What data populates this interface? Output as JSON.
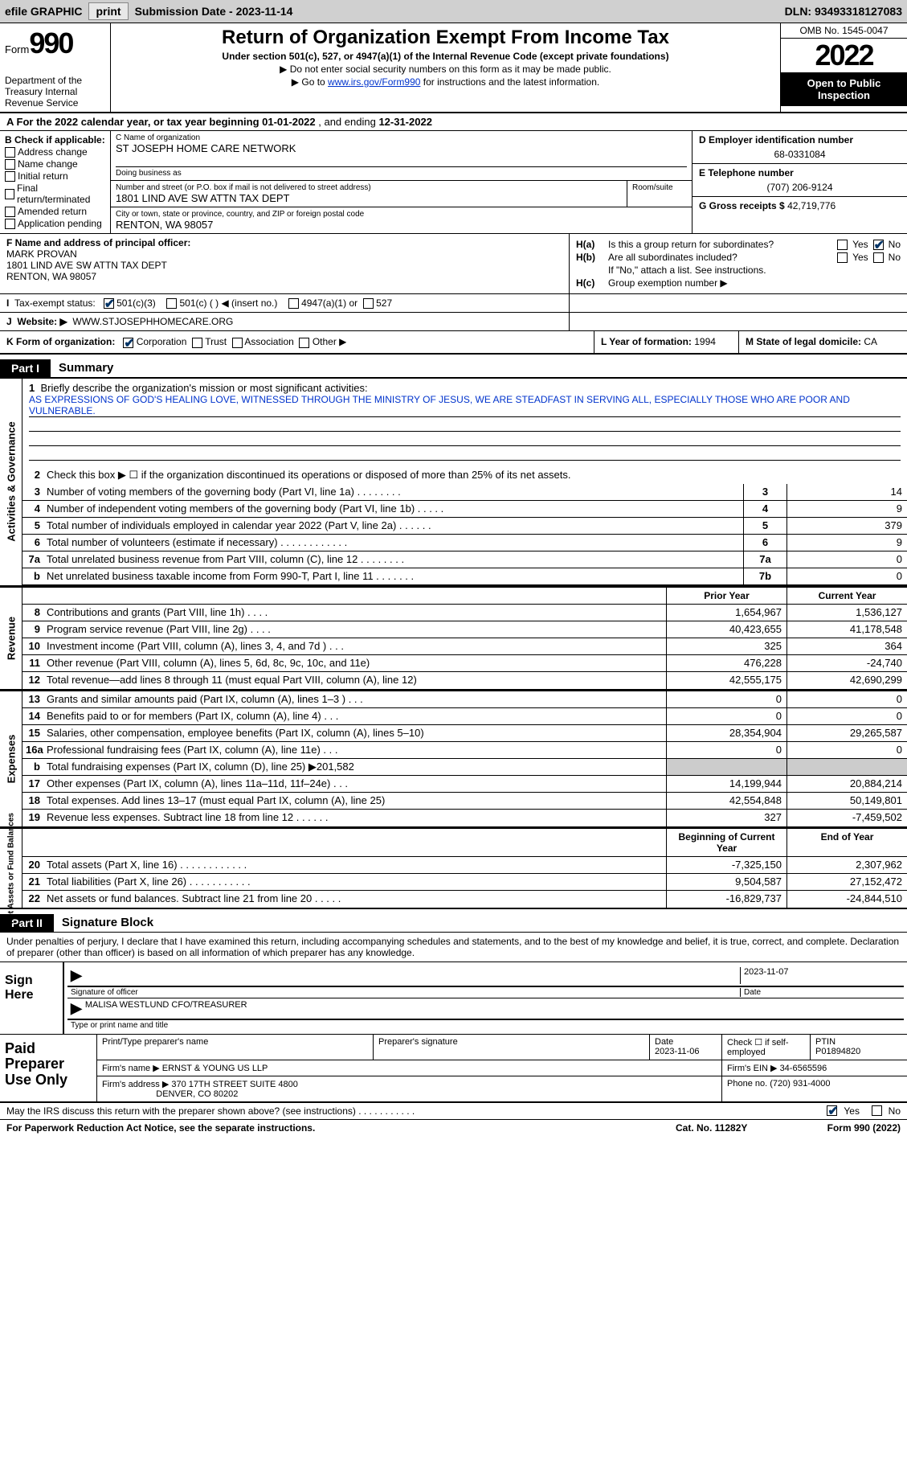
{
  "topbar": {
    "efile": "efile GRAPHIC",
    "print": "print",
    "sub_date_label": "Submission Date - ",
    "sub_date": "2023-11-14",
    "dln_label": "DLN: ",
    "dln": "93493318127083"
  },
  "header": {
    "form_word": "Form",
    "form_num": "990",
    "dept": "Department of the Treasury Internal Revenue Service",
    "title": "Return of Organization Exempt From Income Tax",
    "sub1": "Under section 501(c), 527, or 4947(a)(1) of the Internal Revenue Code (except private foundations)",
    "sub2": "▶ Do not enter social security numbers on this form as it may be made public.",
    "sub3_pre": "▶ Go to ",
    "sub3_link": "www.irs.gov/Form990",
    "sub3_post": " for instructions and the latest information.",
    "omb": "OMB No. 1545-0047",
    "year": "2022",
    "open": "Open to Public Inspection"
  },
  "row_a": {
    "text_pre": "A For the 2022 calendar year, or tax year beginning ",
    "begin": "01-01-2022",
    "mid": "  , and ending ",
    "end": "12-31-2022"
  },
  "col_b": {
    "title": "B Check if applicable:",
    "items": [
      "Address change",
      "Name change",
      "Initial return",
      "Final return/terminated",
      "Amended return",
      "Application pending"
    ]
  },
  "col_c": {
    "name_label": "C Name of organization",
    "name": "ST JOSEPH HOME CARE NETWORK",
    "dba_label": "Doing business as",
    "dba": "",
    "addr_label": "Number and street (or P.O. box if mail is not delivered to street address)",
    "addr": "1801 LIND AVE SW ATTN TAX DEPT",
    "room_label": "Room/suite",
    "city_label": "City or town, state or province, country, and ZIP or foreign postal code",
    "city": "RENTON, WA  98057"
  },
  "col_de": {
    "d_label": "D Employer identification number",
    "d_val": "68-0331084",
    "e_label": "E Telephone number",
    "e_val": "(707) 206-9124",
    "g_label": "G Gross receipts $ ",
    "g_val": "42,719,776"
  },
  "col_f": {
    "label": "F Name and address of principal officer:",
    "name": "MARK PROVAN",
    "addr1": "1801 LIND AVE SW ATTN TAX DEPT",
    "addr2": "RENTON, WA  98057"
  },
  "col_h": {
    "ha_label": "H(a)",
    "ha_text": "Is this a group return for subordinates?",
    "ha_no": true,
    "hb_label": "H(b)",
    "hb_text": "Are all subordinates included?",
    "hb_note": "If \"No,\" attach a list. See instructions.",
    "hc_label": "H(c)",
    "hc_text": "Group exemption number ▶"
  },
  "row_i": {
    "label": "I",
    "text": "Tax-exempt status:",
    "opt1": "501(c)(3)",
    "opt2": "501(c) (  ) ◀ (insert no.)",
    "opt3": "4947(a)(1) or",
    "opt4": "527"
  },
  "row_j": {
    "label": "J",
    "text": "Website: ▶",
    "val": "WWW.STJOSEPHHOMECARE.ORG"
  },
  "row_k": {
    "label": "K Form of organization:",
    "opts": [
      "Corporation",
      "Trust",
      "Association",
      "Other ▶"
    ],
    "l_label": "L Year of formation: ",
    "l_val": "1994",
    "m_label": "M State of legal domicile: ",
    "m_val": "CA"
  },
  "part1": {
    "tab": "Part I",
    "title": "Summary",
    "line1_label": "1",
    "line1_text": "Briefly describe the organization's mission or most significant activities:",
    "mission": "AS EXPRESSIONS OF GOD'S HEALING LOVE, WITNESSED THROUGH THE MINISTRY OF JESUS, WE ARE STEADFAST IN SERVING ALL, ESPECIALLY THOSE WHO ARE POOR AND VULNERABLE.",
    "sec_ag": "Activities & Governance",
    "line2_text": "Check this box ▶ ☐ if the organization discontinued its operations or disposed of more than 25% of its net assets.",
    "lines_ag": [
      {
        "n": "3",
        "t": "Number of voting members of the governing body (Part VI, line 1a)  .    .    .    .    .    .    .    .",
        "b": "3",
        "v": "14"
      },
      {
        "n": "4",
        "t": "Number of independent voting members of the governing body (Part VI, line 1b)  .    .    .    .    .",
        "b": "4",
        "v": "9"
      },
      {
        "n": "5",
        "t": "Total number of individuals employed in calendar year 2022 (Part V, line 2a)  .    .    .    .    .    .",
        "b": "5",
        "v": "379"
      },
      {
        "n": "6",
        "t": "Total number of volunteers (estimate if necessary)    .    .    .    .    .    .    .    .    .    .    .    .",
        "b": "6",
        "v": "9"
      },
      {
        "n": "7a",
        "t": "Total unrelated business revenue from Part VIII, column (C), line 12  .    .    .    .    .    .    .    .",
        "b": "7a",
        "v": "0"
      },
      {
        "n": "b",
        "t": "Net unrelated business taxable income from Form 990-T, Part I, line 11  .    .    .    .    .    .    .",
        "b": "7b",
        "v": "0"
      }
    ],
    "prior_h": "Prior Year",
    "curr_h": "Current Year",
    "sec_rev": "Revenue",
    "lines_rev": [
      {
        "n": "8",
        "t": "Contributions and grants (Part VIII, line 1h)    .    .    .    .",
        "p": "1,654,967",
        "c": "1,536,127"
      },
      {
        "n": "9",
        "t": "Program service revenue (Part VIII, line 2g)    .    .    .    .",
        "p": "40,423,655",
        "c": "41,178,548"
      },
      {
        "n": "10",
        "t": "Investment income (Part VIII, column (A), lines 3, 4, and 7d )    .    .    .",
        "p": "325",
        "c": "364"
      },
      {
        "n": "11",
        "t": "Other revenue (Part VIII, column (A), lines 5, 6d, 8c, 9c, 10c, and 11e)",
        "p": "476,228",
        "c": "-24,740"
      },
      {
        "n": "12",
        "t": "Total revenue—add lines 8 through 11 (must equal Part VIII, column (A), line 12)",
        "p": "42,555,175",
        "c": "42,690,299"
      }
    ],
    "sec_exp": "Expenses",
    "lines_exp": [
      {
        "n": "13",
        "t": "Grants and similar amounts paid (Part IX, column (A), lines 1–3 )  .    .    .",
        "p": "0",
        "c": "0"
      },
      {
        "n": "14",
        "t": "Benefits paid to or for members (Part IX, column (A), line 4)  .    .    .",
        "p": "0",
        "c": "0"
      },
      {
        "n": "15",
        "t": "Salaries, other compensation, employee benefits (Part IX, column (A), lines 5–10)",
        "p": "28,354,904",
        "c": "29,265,587"
      },
      {
        "n": "16a",
        "t": "Professional fundraising fees (Part IX, column (A), line 11e)    .    .    .",
        "p": "0",
        "c": "0"
      },
      {
        "n": "b",
        "t": "Total fundraising expenses (Part IX, column (D), line 25) ▶201,582",
        "p": "",
        "c": "",
        "grey": true
      },
      {
        "n": "17",
        "t": "Other expenses (Part IX, column (A), lines 11a–11d, 11f–24e)  .    .    .",
        "p": "14,199,944",
        "c": "20,884,214"
      },
      {
        "n": "18",
        "t": "Total expenses. Add lines 13–17 (must equal Part IX, column (A), line 25)",
        "p": "42,554,848",
        "c": "50,149,801"
      },
      {
        "n": "19",
        "t": "Revenue less expenses. Subtract line 18 from line 12   .    .    .    .    .    .",
        "p": "327",
        "c": "-7,459,502"
      }
    ],
    "sec_net": "Net Assets or Fund Balances",
    "net_h1": "Beginning of Current Year",
    "net_h2": "End of Year",
    "lines_net": [
      {
        "n": "20",
        "t": "Total assets (Part X, line 16)  .    .    .    .    .    .    .    .    .    .    .    .",
        "p": "-7,325,150",
        "c": "2,307,962"
      },
      {
        "n": "21",
        "t": "Total liabilities (Part X, line 26)  .    .    .    .    .    .    .    .    .    .    .",
        "p": "9,504,587",
        "c": "27,152,472"
      },
      {
        "n": "22",
        "t": "Net assets or fund balances. Subtract line 21 from line 20  .    .    .    .    .",
        "p": "-16,829,737",
        "c": "-24,844,510"
      }
    ]
  },
  "part2": {
    "tab": "Part II",
    "title": "Signature Block",
    "decl": "Under penalties of perjury, I declare that I have examined this return, including accompanying schedules and statements, and to the best of my knowledge and belief, it is true, correct, and complete. Declaration of preparer (other than officer) is based on all information of which preparer has any knowledge.",
    "sign_here": "Sign Here",
    "sig_officer_label": "Signature of officer",
    "sig_date": "2023-11-07",
    "sig_date_label": "Date",
    "sig_name": "MALISA WESTLUND  CFO/TREASURER",
    "sig_name_label": "Type or print name and title",
    "paid_label": "Paid Preparer Use Only",
    "prep_name_label": "Print/Type preparer's name",
    "prep_name": "",
    "prep_sig_label": "Preparer's signature",
    "prep_date_label": "Date",
    "prep_date": "2023-11-06",
    "check_self": "Check ☐ if self-employed",
    "ptin_label": "PTIN",
    "ptin": "P01894820",
    "firm_name_label": "Firm's name    ▶",
    "firm_name": "ERNST & YOUNG US LLP",
    "firm_ein_label": "Firm's EIN ▶",
    "firm_ein": "34-6565596",
    "firm_addr_label": "Firm's address ▶",
    "firm_addr1": "370 17TH STREET SUITE 4800",
    "firm_addr2": "DENVER, CO  80202",
    "firm_phone_label": "Phone no. ",
    "firm_phone": "(720) 931-4000",
    "discuss": "May the IRS discuss this return with the preparer shown above? (see instructions)   .    .    .    .    .    .    .    .    .    .    .",
    "discuss_yes": true,
    "footer_l": "For Paperwork Reduction Act Notice, see the separate instructions.",
    "footer_m": "Cat. No. 11282Y",
    "footer_r": "Form 990 (2022)"
  }
}
